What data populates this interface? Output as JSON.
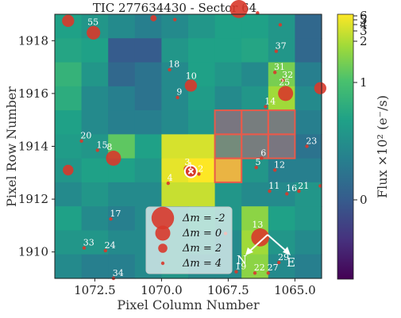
{
  "chart_data": {
    "type": "heatmap",
    "title": "TIC 277634430 - Sector 64",
    "xlabel": "Pixel Column Number",
    "ylabel": "Pixel Row Number",
    "colorbar_label": "Flux ×10² (e⁻/s)",
    "colorbar_ticks": [
      "6",
      "5",
      "4",
      "3",
      "2",
      "1",
      "0"
    ],
    "colormap": "viridis",
    "x_axis": {
      "reversed": true,
      "col_range": [
        1074,
        1064
      ],
      "ticks": [
        1072.5,
        1070.0,
        1067.5,
        1065.0
      ],
      "tick_labels": [
        "1072.5",
        "1070.0",
        "1067.5",
        "1065.0"
      ]
    },
    "y_axis": {
      "row_range": [
        1909,
        1919
      ],
      "ticks": [
        1910,
        1912,
        1914,
        1916,
        1918
      ],
      "tick_labels": [
        "1910",
        "1912",
        "1914",
        "1916",
        "1918"
      ]
    },
    "flux_grid": [
      [
        0.6,
        0.55,
        0.5,
        0.45,
        0.5,
        0.55,
        0.6,
        0.6,
        0.55,
        0.35
      ],
      [
        0.62,
        0.6,
        0.3,
        0.3,
        0.55,
        0.6,
        0.6,
        0.62,
        0.55,
        0.35
      ],
      [
        0.68,
        0.55,
        0.35,
        0.4,
        0.5,
        0.6,
        0.55,
        0.5,
        0.82,
        0.45
      ],
      [
        0.65,
        0.5,
        0.45,
        0.4,
        0.5,
        0.58,
        0.5,
        0.55,
        0.88,
        0.5
      ],
      [
        0.6,
        0.5,
        0.45,
        0.45,
        0.5,
        0.55,
        0.45,
        0.5,
        0.5,
        0.45
      ],
      [
        0.58,
        0.55,
        0.78,
        0.6,
        0.95,
        0.95,
        0.6,
        0.5,
        0.45,
        0.4
      ],
      [
        0.55,
        0.6,
        0.6,
        0.55,
        0.97,
        1.0,
        0.96,
        0.55,
        0.45,
        0.45
      ],
      [
        0.5,
        0.55,
        0.5,
        0.5,
        0.93,
        0.93,
        0.55,
        0.5,
        0.5,
        0.55
      ],
      [
        0.6,
        0.5,
        0.45,
        0.5,
        0.55,
        0.6,
        0.55,
        0.85,
        0.6,
        0.55
      ],
      [
        0.55,
        0.55,
        0.5,
        0.5,
        0.55,
        0.55,
        0.5,
        0.88,
        0.55,
        0.5
      ],
      [
        0.5,
        0.45,
        0.45,
        0.5,
        0.55,
        0.5,
        0.5,
        0.85,
        0.5,
        0.45
      ]
    ],
    "aperture_pixels": [
      [
        4,
        6
      ],
      [
        5,
        6
      ],
      [
        6,
        6
      ],
      [
        4,
        7
      ],
      [
        5,
        7
      ],
      [
        4,
        8
      ],
      [
        5,
        8
      ]
    ],
    "target": {
      "label": "1",
      "col": 1068.9,
      "row": 1913.05
    },
    "stars": [
      {
        "label": "55",
        "col": 1072.55,
        "row": 1918.3,
        "dm": 0.5
      },
      {
        "label": "18",
        "col": 1069.7,
        "row": 1916.9,
        "dm": 4
      },
      {
        "label": "10",
        "col": 1068.9,
        "row": 1916.3,
        "dm": 1
      },
      {
        "label": "9",
        "col": 1069.4,
        "row": 1915.85,
        "dm": 4
      },
      {
        "label": "37",
        "col": 1065.7,
        "row": 1917.6,
        "dm": 4
      },
      {
        "label": "31",
        "col": 1065.75,
        "row": 1916.8,
        "dm": 4
      },
      {
        "label": "32",
        "col": 1065.45,
        "row": 1916.5,
        "dm": 4
      },
      {
        "label": "25",
        "col": 1065.35,
        "row": 1916.0,
        "dm": 0
      },
      {
        "label": "14",
        "col": 1066.1,
        "row": 1915.5,
        "dm": 4
      },
      {
        "label": "20",
        "col": 1073.0,
        "row": 1914.2,
        "dm": 4
      },
      {
        "label": "15",
        "col": 1072.4,
        "row": 1913.85,
        "dm": 4
      },
      {
        "label": "8",
        "col": 1071.8,
        "row": 1913.55,
        "dm": 0
      },
      {
        "label": "23",
        "col": 1064.55,
        "row": 1914.0,
        "dm": 4
      },
      {
        "label": "3",
        "col": 1069.05,
        "row": 1913.15,
        "dm": 3
      },
      {
        "label": "2",
        "col": 1068.6,
        "row": 1912.95,
        "dm": 4
      },
      {
        "label": "4",
        "col": 1069.75,
        "row": 1912.6,
        "dm": 4
      },
      {
        "label": "6",
        "col": 1066.25,
        "row": 1913.55,
        "dm": 4
      },
      {
        "label": "5",
        "col": 1066.45,
        "row": 1913.2,
        "dm": 4
      },
      {
        "label": "12",
        "col": 1065.75,
        "row": 1913.1,
        "dm": 4
      },
      {
        "label": "11",
        "col": 1065.95,
        "row": 1912.3,
        "dm": 4
      },
      {
        "label": "16",
        "col": 1065.3,
        "row": 1912.2,
        "dm": 4
      },
      {
        "label": "21",
        "col": 1064.85,
        "row": 1912.3,
        "dm": 4
      },
      {
        "label": "17",
        "col": 1071.9,
        "row": 1911.25,
        "dm": 4
      },
      {
        "label": "13",
        "col": 1066.3,
        "row": 1910.55,
        "dm": -1
      },
      {
        "label": "33",
        "col": 1072.9,
        "row": 1910.15,
        "dm": 4
      },
      {
        "label": "24",
        "col": 1072.1,
        "row": 1910.05,
        "dm": 4
      },
      {
        "label": "19",
        "col": 1067.2,
        "row": 1909.25,
        "dm": 4
      },
      {
        "label": "22",
        "col": 1066.5,
        "row": 1909.2,
        "dm": 4
      },
      {
        "label": "27",
        "col": 1066.0,
        "row": 1909.2,
        "dm": 4
      },
      {
        "label": "29",
        "col": 1065.6,
        "row": 1909.6,
        "dm": 4
      },
      {
        "label": "34",
        "col": 1071.8,
        "row": 1909.0,
        "dm": 4
      }
    ],
    "unlabeled_stars": [
      {
        "col": 1073.5,
        "row": 1918.75,
        "dm": 1
      },
      {
        "col": 1067.1,
        "row": 1919.2,
        "dm": -1
      },
      {
        "col": 1070.3,
        "row": 1918.85,
        "dm": 3
      },
      {
        "col": 1069.5,
        "row": 1918.8,
        "dm": 4
      },
      {
        "col": 1066.4,
        "row": 1919.05,
        "dm": 4
      },
      {
        "col": 1065.55,
        "row": 1918.6,
        "dm": 4
      },
      {
        "col": 1064.05,
        "row": 1916.2,
        "dm": 1
      },
      {
        "col": 1073.5,
        "row": 1913.1,
        "dm": 1.5
      },
      {
        "col": 1064.05,
        "row": 1912.5,
        "dm": 4
      },
      {
        "col": 1067.6,
        "row": 1910.7,
        "dm": 4
      }
    ],
    "legend": {
      "placement": "bottom-center",
      "entries": [
        {
          "label": "Δm = -2",
          "dm": -2
        },
        {
          "label": "Δm = 0",
          "dm": 0
        },
        {
          "label": "Δm = 2",
          "dm": 2
        },
        {
          "label": "Δm = 4",
          "dm": 4
        }
      ]
    },
    "compass": {
      "north": "N",
      "east": "E"
    }
  }
}
